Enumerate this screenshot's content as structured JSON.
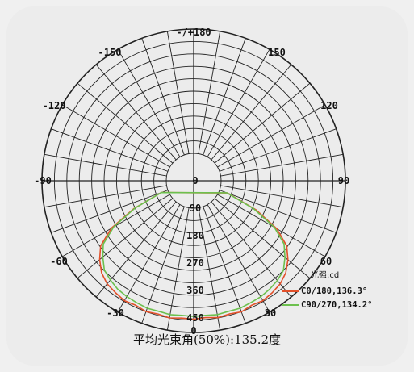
{
  "chart_data": {
    "type": "polar-line",
    "title": "",
    "angle_ticks": [
      "-/+180",
      "150",
      "120",
      "90",
      "60",
      "30",
      "0",
      "-30",
      "-60",
      "-90",
      "-120",
      "-150"
    ],
    "radial_ticks": [
      "0",
      "90",
      "180",
      "270",
      "360",
      "450"
    ],
    "unit_label": "光强:cd",
    "rmax": 450,
    "series": [
      {
        "name": "C0/180,136.3°",
        "color": "#e2502a",
        "points": [
          [
            -70,
            25
          ],
          [
            -65,
            140
          ],
          [
            -60,
            245
          ],
          [
            -55,
            312
          ],
          [
            -50,
            345
          ],
          [
            -45,
            372
          ],
          [
            -40,
            388
          ],
          [
            -35,
            395
          ],
          [
            -30,
            402
          ],
          [
            -25,
            398
          ],
          [
            -20,
            405
          ],
          [
            -15,
            400
          ],
          [
            -10,
            405
          ],
          [
            -5,
            400
          ],
          [
            0,
            402
          ],
          [
            5,
            398
          ],
          [
            10,
            404
          ],
          [
            15,
            400
          ],
          [
            20,
            406
          ],
          [
            25,
            398
          ],
          [
            30,
            402
          ],
          [
            35,
            396
          ],
          [
            40,
            388
          ],
          [
            45,
            372
          ],
          [
            50,
            346
          ],
          [
            55,
            312
          ],
          [
            60,
            248
          ],
          [
            65,
            150
          ],
          [
            70,
            30
          ]
        ]
      },
      {
        "name": "C90/270,134.2°",
        "color": "#6cc04e",
        "points": [
          [
            -70,
            25
          ],
          [
            -65,
            135
          ],
          [
            -60,
            235
          ],
          [
            -55,
            300
          ],
          [
            -50,
            330
          ],
          [
            -45,
            358
          ],
          [
            -40,
            370
          ],
          [
            -35,
            380
          ],
          [
            -30,
            385
          ],
          [
            -25,
            388
          ],
          [
            -20,
            392
          ],
          [
            -15,
            390
          ],
          [
            -10,
            393
          ],
          [
            -5,
            390
          ],
          [
            0,
            392
          ],
          [
            5,
            390
          ],
          [
            10,
            393
          ],
          [
            15,
            390
          ],
          [
            20,
            392
          ],
          [
            25,
            388
          ],
          [
            30,
            386
          ],
          [
            35,
            380
          ],
          [
            40,
            372
          ],
          [
            45,
            360
          ],
          [
            50,
            332
          ],
          [
            55,
            300
          ],
          [
            60,
            238
          ],
          [
            65,
            140
          ],
          [
            70,
            28
          ]
        ]
      }
    ]
  },
  "footer": "平均光束角(50%):135.2度"
}
